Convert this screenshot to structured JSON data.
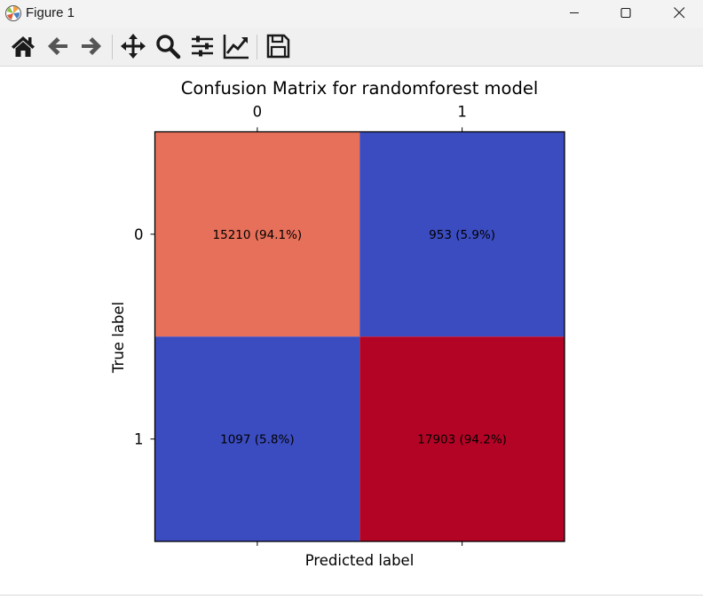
{
  "window": {
    "title": "Figure 1"
  },
  "toolbar": {
    "buttons": [
      {
        "name": "home-icon"
      },
      {
        "name": "back-icon"
      },
      {
        "name": "forward-icon"
      },
      {
        "name": "pan-icon"
      },
      {
        "name": "zoom-icon"
      },
      {
        "name": "subplots-icon"
      },
      {
        "name": "edit-axis-icon"
      },
      {
        "name": "save-icon"
      }
    ]
  },
  "chart_data": {
    "type": "heatmap",
    "title": "Confusion Matrix for randomforest model",
    "xlabel": "Predicted label",
    "ylabel": "True label",
    "x_categories": [
      "0",
      "1"
    ],
    "y_categories": [
      "0",
      "1"
    ],
    "values": [
      [
        15210,
        953
      ],
      [
        1097,
        17903
      ]
    ],
    "cell_labels": [
      [
        "15210 (94.1%)",
        "953 (5.9%)"
      ],
      [
        "1097 (5.8%)",
        "17903 (94.2%)"
      ]
    ],
    "row_percentages": [
      [
        94.1,
        5.9
      ],
      [
        5.8,
        94.2
      ]
    ],
    "colormap": "coolwarm",
    "cell_colors": [
      [
        "#e7705a",
        "#3b4cc0"
      ],
      [
        "#3b4cc0",
        "#b40426"
      ]
    ],
    "x_ticks_position": "top-and-bottom",
    "x_tick_labels_position": "top"
  }
}
